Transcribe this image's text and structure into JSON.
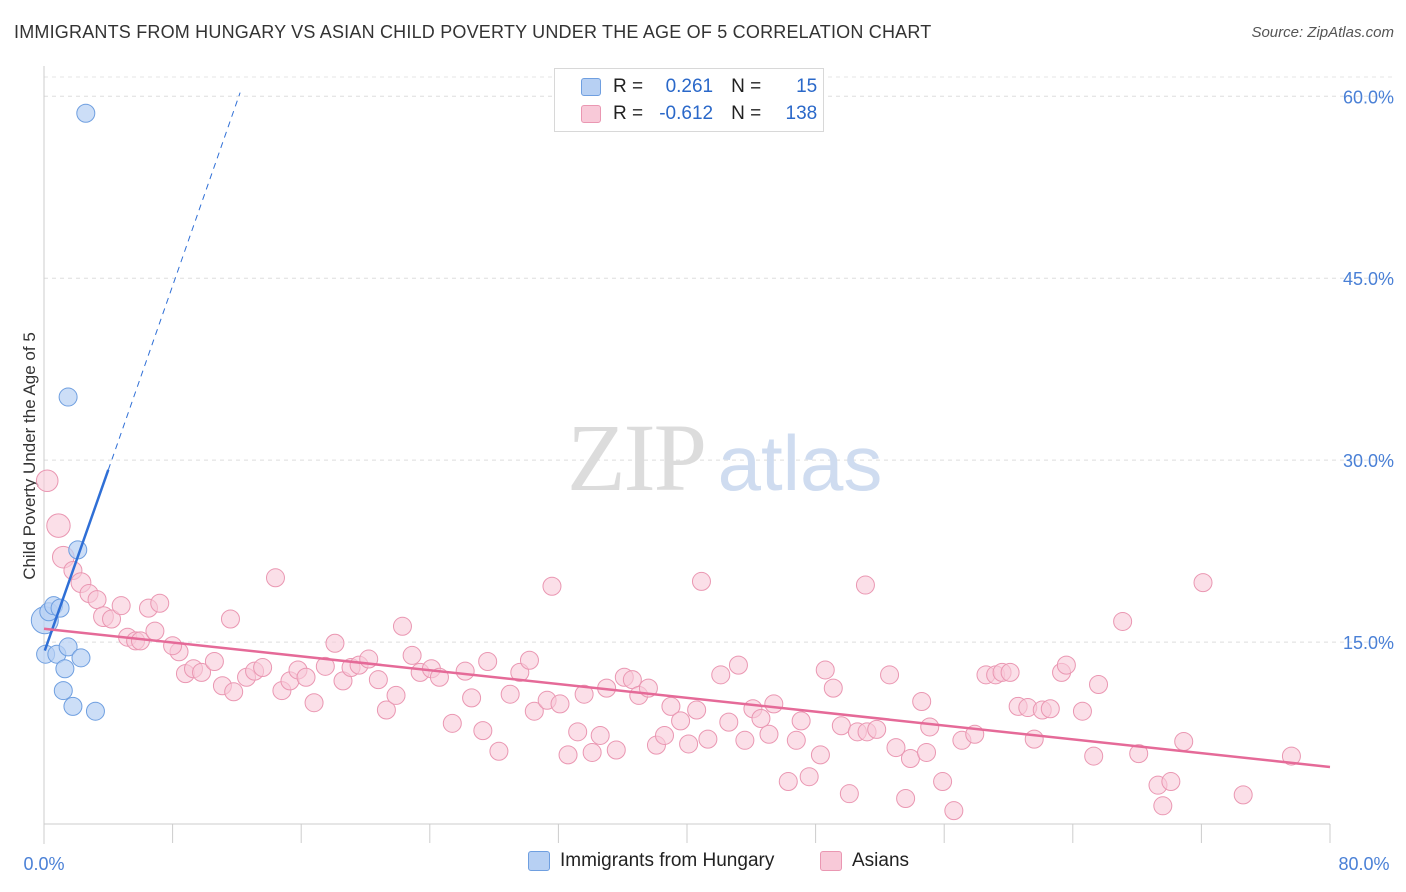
{
  "title": "IMMIGRANTS FROM HUNGARY VS ASIAN CHILD POVERTY UNDER THE AGE OF 5 CORRELATION CHART",
  "source": "Source: ZipAtlas.com",
  "watermark": {
    "zip": "ZIP",
    "atlas": "atlas"
  },
  "legend": {
    "rows": [
      {
        "r_label": "R =",
        "r_value": "0.261",
        "n_label": "N =",
        "n_value": "15"
      },
      {
        "r_label": "R =",
        "r_value": "-0.612",
        "n_label": "N =",
        "n_value": "138"
      }
    ]
  },
  "bottom_legend": {
    "series1": "Immigrants from Hungary",
    "series2": "Asians"
  },
  "colors": {
    "blue_fill": "#b7d0f3",
    "blue_stroke": "#6f9fe0",
    "blue_line": "#2f6fd6",
    "pink_fill": "#f8c9d8",
    "pink_stroke": "#ea97b2",
    "pink_line": "#e56a98",
    "axis_text": "#4a80d6"
  },
  "chart_data": {
    "type": "scatter",
    "title": "IMMIGRANTS FROM HUNGARY VS ASIAN CHILD POVERTY UNDER THE AGE OF 5 CORRELATION CHART",
    "xlabel": "",
    "ylabel": "Child Poverty Under the Age of 5",
    "xlim": [
      0,
      80
    ],
    "ylim": [
      0,
      62
    ],
    "x_tick_labels": [
      "0.0%",
      "80.0%"
    ],
    "y_ticks": [
      15,
      30,
      45,
      60
    ],
    "y_tick_labels": [
      "15.0%",
      "30.0%",
      "45.0%",
      "60.0%"
    ],
    "grid": true,
    "series": [
      {
        "name": "Immigrants from Hungary",
        "r": 0.261,
        "n": 15,
        "trend": {
          "x1": 0.05,
          "y1": 14.3,
          "x2": 4.0,
          "y2": 29.2,
          "dash_to_x": 12.2,
          "dash_to_y": 60.3
        },
        "points": [
          [
            0.05,
            16.8,
            1.5
          ],
          [
            0.1,
            14.0,
            1.0
          ],
          [
            0.3,
            17.5,
            1.0
          ],
          [
            0.6,
            18.0,
            1.0
          ],
          [
            1.0,
            17.8,
            1.0
          ],
          [
            0.8,
            14.0,
            1.0
          ],
          [
            1.2,
            11.0,
            1.0
          ],
          [
            1.3,
            12.8,
            1.0
          ],
          [
            1.5,
            14.6,
            1.0
          ],
          [
            1.8,
            9.7,
            1.0
          ],
          [
            2.3,
            13.7,
            1.0
          ],
          [
            2.1,
            22.6,
            1.0
          ],
          [
            3.2,
            9.3,
            1.0
          ],
          [
            1.5,
            35.2,
            1.0
          ],
          [
            2.6,
            58.6,
            1.0
          ]
        ]
      },
      {
        "name": "Asians",
        "r": -0.612,
        "n": 138,
        "trend": {
          "x1": 0.0,
          "y1": 16.1,
          "x2": 80.0,
          "y2": 4.7
        },
        "points": [
          [
            0.2,
            28.3,
            1.2
          ],
          [
            0.9,
            24.6,
            1.3
          ],
          [
            1.2,
            22.0,
            1.2
          ],
          [
            1.8,
            20.9,
            1.0
          ],
          [
            2.3,
            19.9,
            1.1
          ],
          [
            2.8,
            19.0,
            1.0
          ],
          [
            3.3,
            18.5,
            1.0
          ],
          [
            3.7,
            17.1,
            1.1
          ],
          [
            4.2,
            16.9,
            1.0
          ],
          [
            4.8,
            18.0,
            1.0
          ],
          [
            5.2,
            15.4,
            1.0
          ],
          [
            5.7,
            15.1,
            1.0
          ],
          [
            6.0,
            15.1,
            1.0
          ],
          [
            6.5,
            17.8,
            1.0
          ],
          [
            7.2,
            18.2,
            1.0
          ],
          [
            6.9,
            15.9,
            1.0
          ],
          [
            8.4,
            14.2,
            1.0
          ],
          [
            8.0,
            14.7,
            1.0
          ],
          [
            8.8,
            12.4,
            1.0
          ],
          [
            9.3,
            12.8,
            1.0
          ],
          [
            9.8,
            12.5,
            1.0
          ],
          [
            10.6,
            13.4,
            1.0
          ],
          [
            11.1,
            11.4,
            1.0
          ],
          [
            11.8,
            10.9,
            1.0
          ],
          [
            11.6,
            16.9,
            1.0
          ],
          [
            12.6,
            12.1,
            1.0
          ],
          [
            13.1,
            12.6,
            1.0
          ],
          [
            13.6,
            12.9,
            1.0
          ],
          [
            14.4,
            20.3,
            1.0
          ],
          [
            14.8,
            11.0,
            1.0
          ],
          [
            15.3,
            11.8,
            1.0
          ],
          [
            15.8,
            12.7,
            1.0
          ],
          [
            16.3,
            12.1,
            1.0
          ],
          [
            16.8,
            10.0,
            1.0
          ],
          [
            17.5,
            13.0,
            1.0
          ],
          [
            18.1,
            14.9,
            1.0
          ],
          [
            18.6,
            11.8,
            1.0
          ],
          [
            19.1,
            12.9,
            1.0
          ],
          [
            19.6,
            13.1,
            1.0
          ],
          [
            20.2,
            13.6,
            1.0
          ],
          [
            20.8,
            11.9,
            1.0
          ],
          [
            21.3,
            9.4,
            1.0
          ],
          [
            21.9,
            10.6,
            1.0
          ],
          [
            22.3,
            16.3,
            1.0
          ],
          [
            22.9,
            13.9,
            1.0
          ],
          [
            23.4,
            12.5,
            1.0
          ],
          [
            24.1,
            12.8,
            1.0
          ],
          [
            24.6,
            12.1,
            1.0
          ],
          [
            25.4,
            8.3,
            1.0
          ],
          [
            26.2,
            12.6,
            1.0
          ],
          [
            26.6,
            10.4,
            1.0
          ],
          [
            27.3,
            7.7,
            1.0
          ],
          [
            27.6,
            13.4,
            1.0
          ],
          [
            28.3,
            6.0,
            1.0
          ],
          [
            29.0,
            10.7,
            1.0
          ],
          [
            29.6,
            12.5,
            1.0
          ],
          [
            30.2,
            13.5,
            1.0
          ],
          [
            30.5,
            9.3,
            1.0
          ],
          [
            31.3,
            10.2,
            1.0
          ],
          [
            31.6,
            19.6,
            1.0
          ],
          [
            32.1,
            9.9,
            1.0
          ],
          [
            32.6,
            5.7,
            1.0
          ],
          [
            33.2,
            7.6,
            1.0
          ],
          [
            33.6,
            10.7,
            1.0
          ],
          [
            34.1,
            5.9,
            1.0
          ],
          [
            34.6,
            7.3,
            1.0
          ],
          [
            35.0,
            11.2,
            1.0
          ],
          [
            35.6,
            6.1,
            1.0
          ],
          [
            36.1,
            12.1,
            1.0
          ],
          [
            36.6,
            11.9,
            1.0
          ],
          [
            37.0,
            10.6,
            1.0
          ],
          [
            37.6,
            11.2,
            1.0
          ],
          [
            38.1,
            6.5,
            1.0
          ],
          [
            38.6,
            7.3,
            1.0
          ],
          [
            39.0,
            9.7,
            1.0
          ],
          [
            39.6,
            8.5,
            1.0
          ],
          [
            40.1,
            6.6,
            1.0
          ],
          [
            40.6,
            9.4,
            1.0
          ],
          [
            40.9,
            20.0,
            1.0
          ],
          [
            41.3,
            7.0,
            1.0
          ],
          [
            42.1,
            12.3,
            1.0
          ],
          [
            42.6,
            8.4,
            1.0
          ],
          [
            43.2,
            13.1,
            1.0
          ],
          [
            43.6,
            6.9,
            1.0
          ],
          [
            44.1,
            9.5,
            1.0
          ],
          [
            44.6,
            8.7,
            1.0
          ],
          [
            45.1,
            7.4,
            1.0
          ],
          [
            45.4,
            9.9,
            1.0
          ],
          [
            46.3,
            3.5,
            1.0
          ],
          [
            46.8,
            6.9,
            1.0
          ],
          [
            47.1,
            8.5,
            1.0
          ],
          [
            47.6,
            3.9,
            1.0
          ],
          [
            48.3,
            5.7,
            1.0
          ],
          [
            48.6,
            12.7,
            1.0
          ],
          [
            49.1,
            11.2,
            1.0
          ],
          [
            49.6,
            8.1,
            1.0
          ],
          [
            50.1,
            2.5,
            1.0
          ],
          [
            50.6,
            7.6,
            1.0
          ],
          [
            51.1,
            19.7,
            1.0
          ],
          [
            51.2,
            7.6,
            1.0
          ],
          [
            51.8,
            7.8,
            1.0
          ],
          [
            52.6,
            12.3,
            1.0
          ],
          [
            53.0,
            6.3,
            1.0
          ],
          [
            53.6,
            2.1,
            1.0
          ],
          [
            53.9,
            5.4,
            1.0
          ],
          [
            54.6,
            10.1,
            1.0
          ],
          [
            54.9,
            5.9,
            1.0
          ],
          [
            55.1,
            8.0,
            1.0
          ],
          [
            55.9,
            3.5,
            1.0
          ],
          [
            56.6,
            1.1,
            1.0
          ],
          [
            57.1,
            6.9,
            1.0
          ],
          [
            57.9,
            7.4,
            1.0
          ],
          [
            58.6,
            12.3,
            1.0
          ],
          [
            59.2,
            12.3,
            1.0
          ],
          [
            59.6,
            12.5,
            1.0
          ],
          [
            60.1,
            12.5,
            1.0
          ],
          [
            60.6,
            9.7,
            1.0
          ],
          [
            61.2,
            9.6,
            1.0
          ],
          [
            61.6,
            7.0,
            1.0
          ],
          [
            62.1,
            9.4,
            1.0
          ],
          [
            62.6,
            9.5,
            1.0
          ],
          [
            63.3,
            12.5,
            1.0
          ],
          [
            63.6,
            13.1,
            1.0
          ],
          [
            64.6,
            9.3,
            1.0
          ],
          [
            65.3,
            5.6,
            1.0
          ],
          [
            65.6,
            11.5,
            1.0
          ],
          [
            67.1,
            16.7,
            1.0
          ],
          [
            68.1,
            5.8,
            1.0
          ],
          [
            69.3,
            3.2,
            1.0
          ],
          [
            69.6,
            1.5,
            1.0
          ],
          [
            70.1,
            3.5,
            1.0
          ],
          [
            70.9,
            6.8,
            1.0
          ],
          [
            72.1,
            19.9,
            1.0
          ],
          [
            74.6,
            2.4,
            1.0
          ],
          [
            77.6,
            5.6,
            1.0
          ]
        ]
      }
    ]
  }
}
